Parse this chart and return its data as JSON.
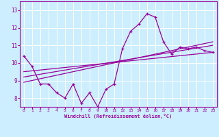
{
  "xlabel": "Windchill (Refroidissement éolien,°C)",
  "xlim": [
    -0.5,
    23.5
  ],
  "ylim": [
    7.5,
    13.5
  ],
  "xticks": [
    0,
    1,
    2,
    3,
    4,
    5,
    6,
    7,
    8,
    9,
    10,
    11,
    12,
    13,
    14,
    15,
    16,
    17,
    18,
    19,
    20,
    21,
    22,
    23
  ],
  "yticks": [
    8,
    9,
    10,
    11,
    12,
    13
  ],
  "bg_color": "#cceeff",
  "line_color": "#990099",
  "grid_color": "#ffffff",
  "hourly_values": [
    10.4,
    9.8,
    8.8,
    8.8,
    8.3,
    8.0,
    8.8,
    7.7,
    8.3,
    7.5,
    8.5,
    8.8,
    10.8,
    11.8,
    12.2,
    12.8,
    12.6,
    11.2,
    10.5,
    10.9,
    10.8,
    10.9,
    10.7,
    10.6
  ],
  "regression_lines": [
    {
      "x": [
        0,
        23
      ],
      "y": [
        9.5,
        10.6
      ]
    },
    {
      "x": [
        0,
        23
      ],
      "y": [
        9.2,
        11.0
      ]
    },
    {
      "x": [
        0,
        23
      ],
      "y": [
        8.9,
        11.2
      ]
    }
  ]
}
